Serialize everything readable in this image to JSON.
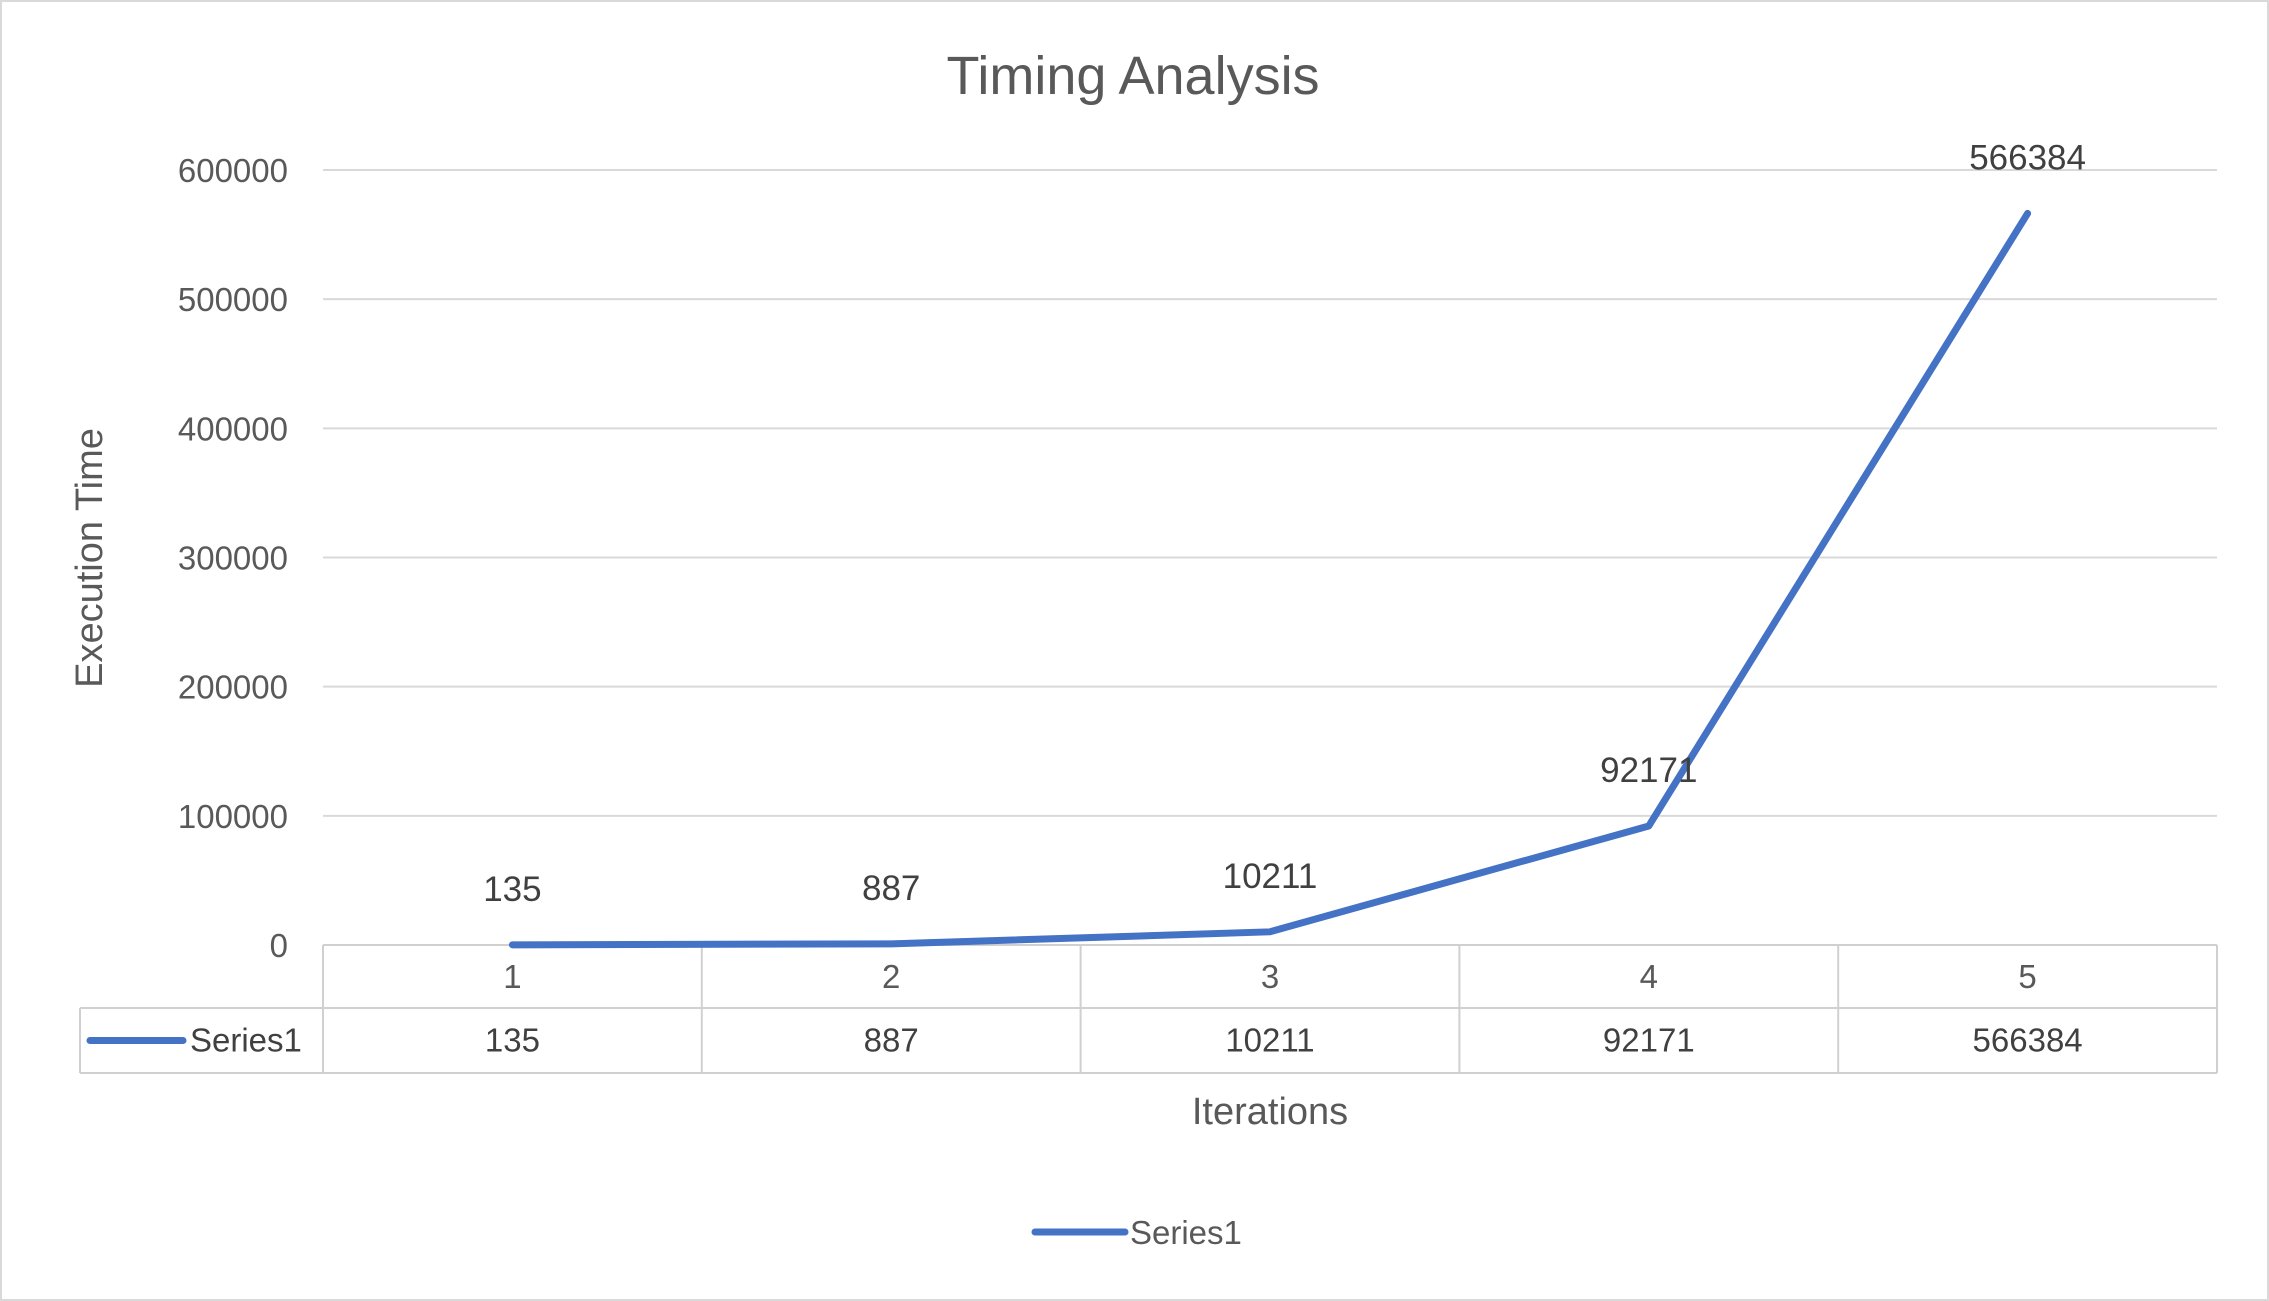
{
  "chart_data": {
    "type": "line",
    "title": "Timing Analysis",
    "xlabel": "Iterations",
    "ylabel": "Execution Time",
    "categories": [
      "1",
      "2",
      "3",
      "4",
      "5"
    ],
    "series": [
      {
        "name": "Series1",
        "values": [
          135,
          887,
          10211,
          92171,
          566384
        ],
        "color": "#4472c4"
      }
    ],
    "ylim": [
      0,
      600000
    ],
    "yticks": [
      "0",
      "100000",
      "200000",
      "300000",
      "400000",
      "500000",
      "600000"
    ],
    "grid": true,
    "data_labels": true,
    "data_table": true,
    "legend_position": "bottom"
  }
}
